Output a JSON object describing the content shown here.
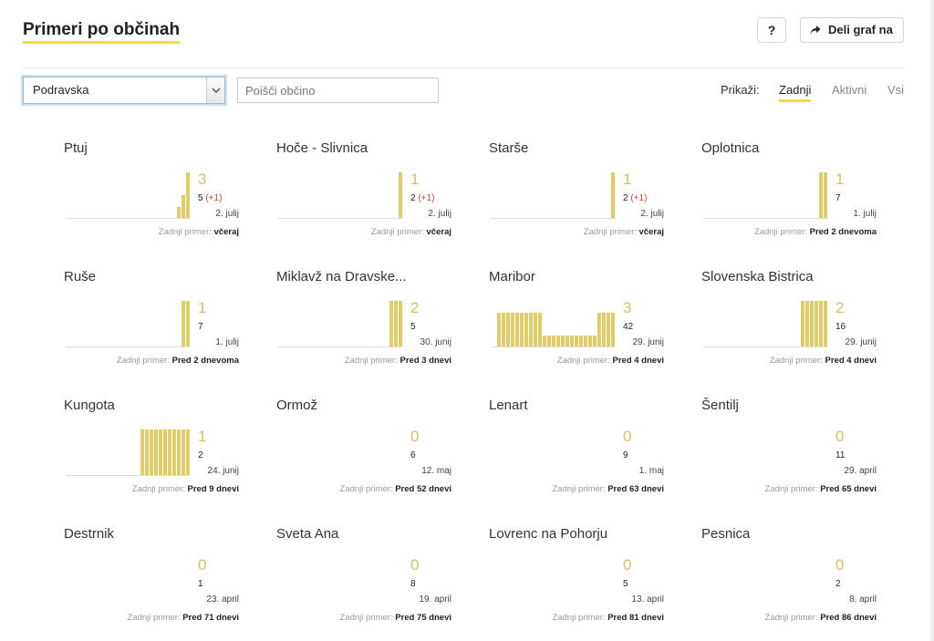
{
  "header": {
    "title": "Primeri po občinah",
    "help_label": "?",
    "share_label": "Deli graf na",
    "help_icon": "question-icon",
    "share_icon": "share-arrow-icon"
  },
  "controls": {
    "region_value": "Podravska",
    "search_placeholder": "Poišči občino",
    "show_label": "Prikaži:",
    "filters": [
      "Zadnji",
      "Aktivni",
      "Vsi"
    ],
    "active_filter": "Zadnji"
  },
  "colors": {
    "accent": "#f5dc3c",
    "bar": "#e1cc6c",
    "delta": "#c24a3c"
  },
  "last_case_label": "Zadnji primer:",
  "municipalities": [
    {
      "name": "Ptuj",
      "active": "3",
      "total": "5",
      "delta": "(+1)",
      "date": "2. julij",
      "last": "včeraj",
      "bars": [
        1,
        2,
        4
      ]
    },
    {
      "name": "Hoče - Slivnica",
      "active": "1",
      "total": "2",
      "delta": "(+1)",
      "date": "2. julij",
      "last": "včeraj",
      "bars": [
        4
      ]
    },
    {
      "name": "Starše",
      "active": "1",
      "total": "2",
      "delta": "(+1)",
      "date": "2. julij",
      "last": "včeraj",
      "bars": [
        4
      ]
    },
    {
      "name": "Oplotnica",
      "active": "1",
      "total": "7",
      "delta": "",
      "date": "1. julij",
      "last": "Pred 2 dnevoma",
      "bars": [
        4,
        4
      ]
    },
    {
      "name": "Ruše",
      "active": "1",
      "total": "7",
      "delta": "",
      "date": "1. julij",
      "last": "Pred 2 dnevoma",
      "bars": [
        4,
        4
      ]
    },
    {
      "name": "Miklavž na Dravske...",
      "active": "2",
      "total": "5",
      "delta": "",
      "date": "30. junij",
      "last": "Pred 3 dnevi",
      "bars": [
        4,
        4,
        4
      ]
    },
    {
      "name": "Maribor",
      "active": "3",
      "total": "42",
      "delta": "",
      "date": "29. junij",
      "last": "Pred 4 dnevi",
      "bars": [
        3,
        3,
        3,
        3,
        3,
        3,
        3,
        3,
        3,
        3,
        1,
        1,
        1,
        1,
        1,
        1,
        1,
        1,
        1,
        1,
        1,
        1,
        3,
        3,
        3,
        3
      ]
    },
    {
      "name": "Slovenska Bistrica",
      "active": "2",
      "total": "16",
      "delta": "",
      "date": "29. junij",
      "last": "Pred 4 dnevi",
      "bars": [
        4,
        4,
        4,
        4,
        4,
        4
      ]
    },
    {
      "name": "Kungota",
      "active": "1",
      "total": "2",
      "delta": "",
      "date": "24. junij",
      "last": "Pred 9 dnevi",
      "bars": [
        4,
        4,
        4,
        4,
        4,
        4,
        4,
        4,
        4,
        4,
        4
      ]
    },
    {
      "name": "Ormož",
      "active": "0",
      "total": "6",
      "delta": "",
      "date": "12. maj",
      "last": "Pred 52 dnevi",
      "bars": []
    },
    {
      "name": "Lenart",
      "active": "0",
      "total": "9",
      "delta": "",
      "date": "1. maj",
      "last": "Pred 63 dnevi",
      "bars": []
    },
    {
      "name": "Šentilj",
      "active": "0",
      "total": "11",
      "delta": "",
      "date": "29. april",
      "last": "Pred 65 dnevi",
      "bars": []
    },
    {
      "name": "Destrnik",
      "active": "0",
      "total": "1",
      "delta": "",
      "date": "23. april",
      "last": "Pred 71 dnevi",
      "bars": []
    },
    {
      "name": "Sveta Ana",
      "active": "0",
      "total": "8",
      "delta": "",
      "date": "19. april",
      "last": "Pred 75 dnevi",
      "bars": []
    },
    {
      "name": "Lovrenc na Pohorju",
      "active": "0",
      "total": "5",
      "delta": "",
      "date": "13. april",
      "last": "Pred 81 dnevi",
      "bars": []
    },
    {
      "name": "Pesnica",
      "active": "0",
      "total": "2",
      "delta": "",
      "date": "8. april",
      "last": "Pred 86 dnevi",
      "bars": []
    }
  ]
}
